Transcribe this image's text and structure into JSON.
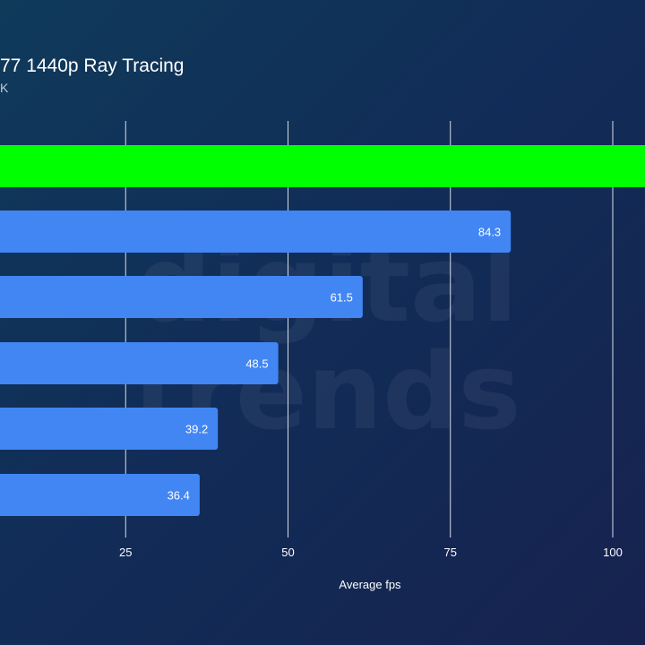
{
  "colors": {
    "highlight_bar": "#00ff00",
    "bar": "#4286f4",
    "gridline": "#d8dbe6",
    "text": "#ffffff"
  },
  "watermark": {
    "line1": "digital",
    "line2": "trends"
  },
  "chart_data": {
    "type": "bar",
    "orientation": "horizontal",
    "title": "77 1440p Ray Tracing",
    "subtitle": "K",
    "xlabel": "Average fps",
    "ylabel": "",
    "xlim": [
      0,
      100
    ],
    "x_ticks": [
      25,
      50,
      75,
      100
    ],
    "grid": true,
    "legend": "none",
    "categories": [
      "",
      "",
      "",
      "",
      "",
      ""
    ],
    "values": [
      110,
      84.3,
      61.5,
      48.5,
      39.2,
      36.4
    ],
    "value_labels": [
      "",
      "84.3",
      "61.5",
      "48.5",
      "39.2",
      "36.4"
    ],
    "highlighted_index": 0
  }
}
